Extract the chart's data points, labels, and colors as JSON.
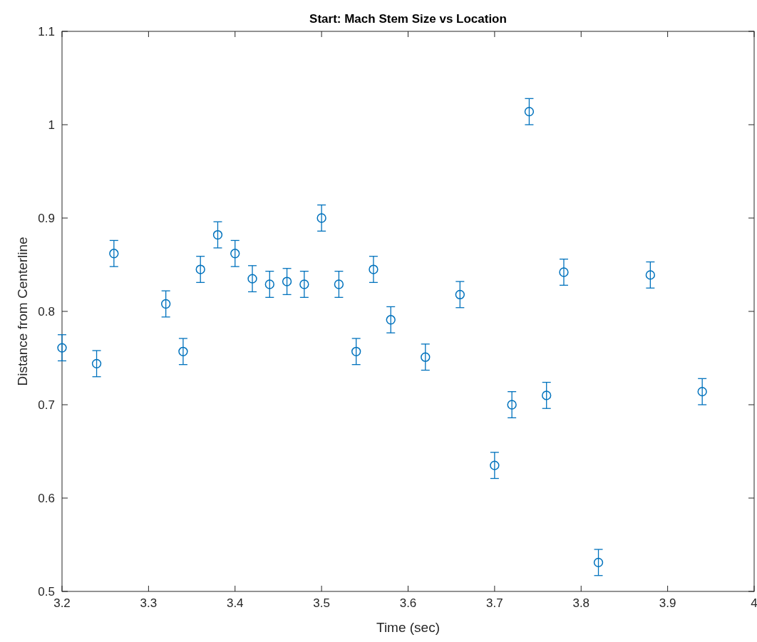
{
  "chart_data": {
    "type": "scatter",
    "title": "Start: Mach Stem Size vs Location",
    "xlabel": "Time (sec)",
    "ylabel": "Distance from Centerline",
    "x": [
      3.2,
      3.24,
      3.26,
      3.32,
      3.34,
      3.36,
      3.38,
      3.4,
      3.42,
      3.44,
      3.46,
      3.48,
      3.5,
      3.52,
      3.54,
      3.56,
      3.58,
      3.62,
      3.66,
      3.7,
      3.72,
      3.74,
      3.76,
      3.78,
      3.82,
      3.88,
      3.94
    ],
    "values": [
      0.761,
      0.744,
      0.862,
      0.808,
      0.757,
      0.845,
      0.882,
      0.862,
      0.835,
      0.829,
      0.832,
      0.829,
      0.9,
      0.829,
      0.757,
      0.845,
      0.791,
      0.751,
      0.818,
      0.635,
      0.7,
      1.014,
      0.71,
      0.842,
      0.531,
      0.839,
      0.714
    ],
    "errors": [
      0.014,
      0.014,
      0.014,
      0.014,
      0.014,
      0.014,
      0.014,
      0.014,
      0.014,
      0.014,
      0.014,
      0.014,
      0.014,
      0.014,
      0.014,
      0.014,
      0.014,
      0.014,
      0.014,
      0.014,
      0.014,
      0.014,
      0.014,
      0.014,
      0.014,
      0.014,
      0.014
    ],
    "color": "#0072bd",
    "marker": "circle",
    "xlim": [
      3.2,
      4
    ],
    "xticks": [
      3.2,
      3.3,
      3.4,
      3.5,
      3.6,
      3.7,
      3.8,
      3.9,
      4
    ],
    "ylim": [
      0.5,
      1.1
    ],
    "yticks": [
      0.5,
      0.6,
      0.7,
      0.8,
      0.9,
      1,
      1.1
    ]
  }
}
